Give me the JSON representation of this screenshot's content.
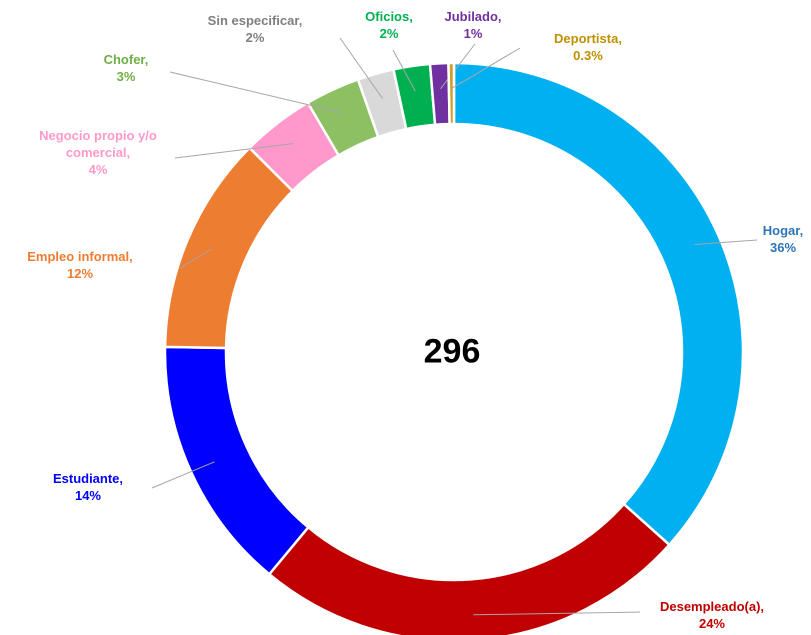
{
  "chart_data": {
    "type": "donut",
    "center_label": "296",
    "categories": [
      "Hogar,",
      "Desempleado(a),",
      "Estudiante,",
      "Empleo informal,",
      "Negocio propio y/o comercial,",
      "Chofer,",
      "Sin especificar,",
      "Oficios,",
      "Jubilado,",
      "Deportista,"
    ],
    "values": [
      36,
      24,
      14,
      12,
      4,
      3,
      2,
      2,
      1,
      0.3
    ],
    "value_labels": [
      "36%",
      "24%",
      "14%",
      "12%",
      "4%",
      "3%",
      "2%",
      "2%",
      "1%",
      "0.3%"
    ],
    "colors": [
      "#00b0f0",
      "#c00000",
      "#0000ff",
      "#ed7d31",
      "#ff99cc",
      "#8cc063",
      "#d9d9d9",
      "#00b050",
      "#7030a0",
      "#c9a227"
    ],
    "label_colors": [
      "#2e75b6",
      "#c00000",
      "#0000ff",
      "#ed7d31",
      "#ff99cc",
      "#70ad47",
      "#7f7f7f",
      "#00b050",
      "#7030a0",
      "#bf9000"
    ]
  }
}
